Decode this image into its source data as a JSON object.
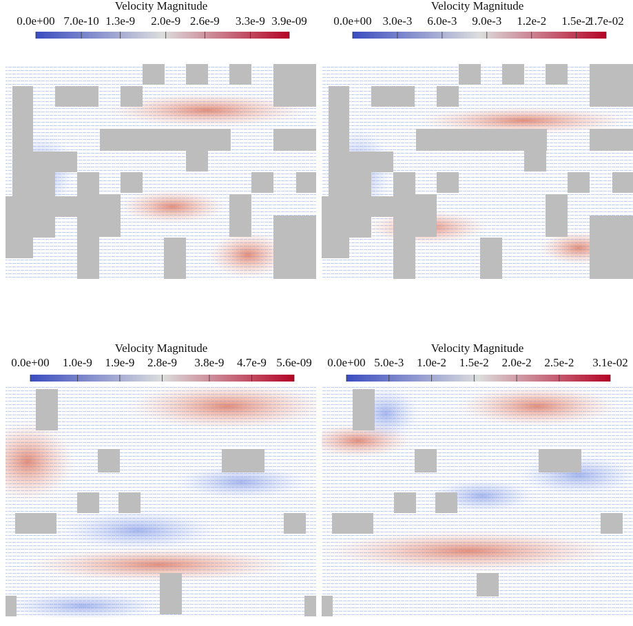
{
  "chart_data": [
    {
      "type": "quiver",
      "title": "Velocity Magnitude",
      "colors": [
        "#3b4cc0",
        "#dcdddd",
        "#b40426"
      ],
      "clim": [
        0,
        3.9e-09
      ],
      "ticks": [
        {
          "value": 0,
          "label": "0.0e+00"
        },
        {
          "value": 7e-10,
          "label": "7.0e-10"
        },
        {
          "value": 1.3e-09,
          "label": "1.3e-9"
        },
        {
          "value": 2e-09,
          "label": "2.0e-9"
        },
        {
          "value": 2.6e-09,
          "label": "2.6e-9"
        },
        {
          "value": 3.3e-09,
          "label": "3.3e-9"
        },
        {
          "value": 3.9e-09,
          "label": "3.9e-09"
        }
      ]
    },
    {
      "type": "quiver",
      "title": "Velocity Magnitude",
      "colors": [
        "#3b4cc0",
        "#dcdddd",
        "#b40426"
      ],
      "clim": [
        0,
        0.017
      ],
      "ticks": [
        {
          "value": 0,
          "label": "0.0e+00"
        },
        {
          "value": 0.003,
          "label": "3.0e-3"
        },
        {
          "value": 0.006,
          "label": "6.0e-3"
        },
        {
          "value": 0.009,
          "label": "9.0e-3"
        },
        {
          "value": 0.012,
          "label": "1.2e-2"
        },
        {
          "value": 0.015,
          "label": "1.5e-2"
        },
        {
          "value": 0.017,
          "label": "1.7e-02"
        }
      ]
    },
    {
      "type": "quiver",
      "title": "Velocity Magnitude",
      "colors": [
        "#3b4cc0",
        "#dcdddd",
        "#b40426"
      ],
      "clim": [
        0,
        5.6e-09
      ],
      "ticks": [
        {
          "value": 0,
          "label": "0.0e+00"
        },
        {
          "value": 1e-09,
          "label": "1.0e-9"
        },
        {
          "value": 1.9e-09,
          "label": "1.9e-9"
        },
        {
          "value": 2.8e-09,
          "label": "2.8e-9"
        },
        {
          "value": 3.8e-09,
          "label": "3.8e-9"
        },
        {
          "value": 4.7e-09,
          "label": "4.7e-9"
        },
        {
          "value": 5.6e-09,
          "label": "5.6e-09"
        }
      ]
    },
    {
      "type": "quiver",
      "title": "Velocity Magnitude",
      "colors": [
        "#3b4cc0",
        "#dcdddd",
        "#b40426"
      ],
      "clim": [
        0,
        0.031
      ],
      "ticks": [
        {
          "value": 0,
          "label": "0.0e+00"
        },
        {
          "value": 0.005,
          "label": "5.0e-3"
        },
        {
          "value": 0.01,
          "label": "1.0e-2"
        },
        {
          "value": 0.015,
          "label": "1.5e-2"
        },
        {
          "value": 0.02,
          "label": "2.0e-2"
        },
        {
          "value": 0.025,
          "label": "2.5e-2"
        },
        {
          "value": 0.031,
          "label": "3.1e-02"
        }
      ]
    }
  ]
}
